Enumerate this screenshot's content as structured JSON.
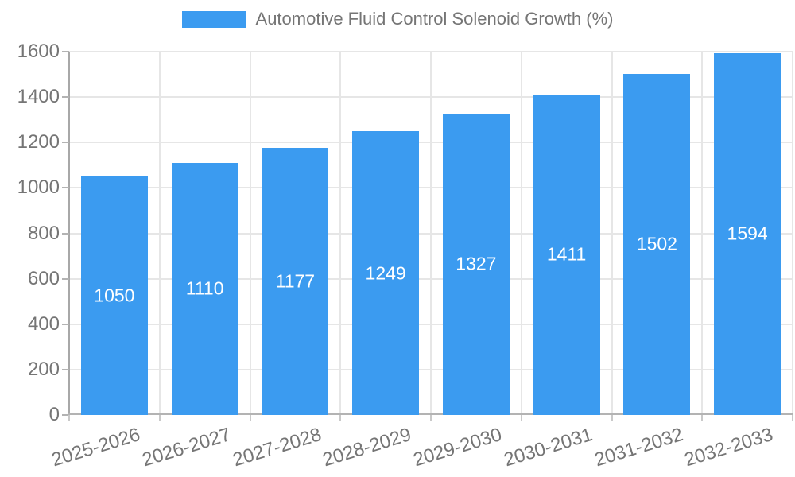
{
  "chart_data": {
    "type": "bar",
    "title": "Automotive Fluid Control Solenoid Growth (%)",
    "categories": [
      "2025-2026",
      "2026-2027",
      "2027-2028",
      "2028-2029",
      "2029-2030",
      "2030-2031",
      "2031-2032",
      "2032-2033"
    ],
    "values": [
      1050,
      1110,
      1177,
      1249,
      1327,
      1411,
      1502,
      1594
    ],
    "xlabel": "",
    "ylabel": "",
    "ylim": [
      0,
      1600
    ],
    "ytick_step": 200,
    "yticks": [
      0,
      200,
      400,
      600,
      800,
      1000,
      1200,
      1400,
      1600
    ],
    "grid": true,
    "legend_position": "top-center",
    "value_labels": "inside-center",
    "colors": {
      "bar": "#3b9bf0",
      "value_label": "#ffffff",
      "axis_text": "#757575",
      "grid_line": "#e6e6e6",
      "axis_line": "#b3b3b3"
    }
  }
}
